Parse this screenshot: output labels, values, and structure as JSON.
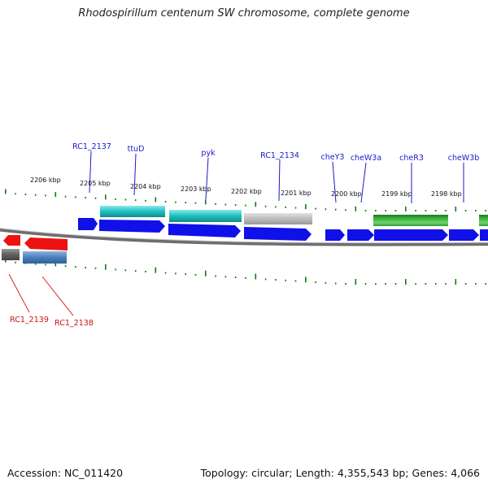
{
  "title": "Rhodospirillum centenum SW chromosome, complete genome",
  "footer": {
    "accession": "Accession: NC_011420",
    "stats": "Topology: circular; Length: 4,355,543 bp; Genes: 4,066"
  },
  "colors": {
    "forward_cds": "#1010e8",
    "reverse_cds": "#ee1111",
    "backbone": "#6e6e6e",
    "tick": "#117a11",
    "label_forward": "#1a1acc",
    "label_reverse": "#cc1111",
    "leader_forward": "#1a1acc",
    "leader_reverse": "#dd2222"
  },
  "scale": {
    "unit": "kbp",
    "labels": [
      "2206 kbp",
      "2205 kbp",
      "2204 kbp",
      "2203 kbp",
      "2202 kbp",
      "2201 kbp",
      "2200 kbp",
      "2199 kbp",
      "2198 kbp"
    ]
  },
  "gene_labels": {
    "forward": [
      "RC1_2137",
      "ttuD",
      "pyk",
      "RC1_2134",
      "cheY3",
      "cheW3a",
      "cheR3",
      "cheW3b"
    ],
    "reverse": [
      "RC1_2139",
      "RC1_2138"
    ]
  },
  "feature_colors": {
    "forward_cds": [
      "#1010e8",
      "#1010e8",
      "#1010e8",
      "#1010e8",
      "#1010e8",
      "#1010e8",
      "#1010e8",
      "#1010e8",
      "#1010e8"
    ],
    "forward_features": [
      "#22c4c4",
      "#22c4c4",
      "#bcbcbc",
      "#2fa52f",
      "#2fa52f"
    ],
    "reverse_cds": [
      "#ee1111",
      "#ee1111"
    ],
    "reverse_features": [
      "#707070",
      "#4a7fbf"
    ]
  }
}
